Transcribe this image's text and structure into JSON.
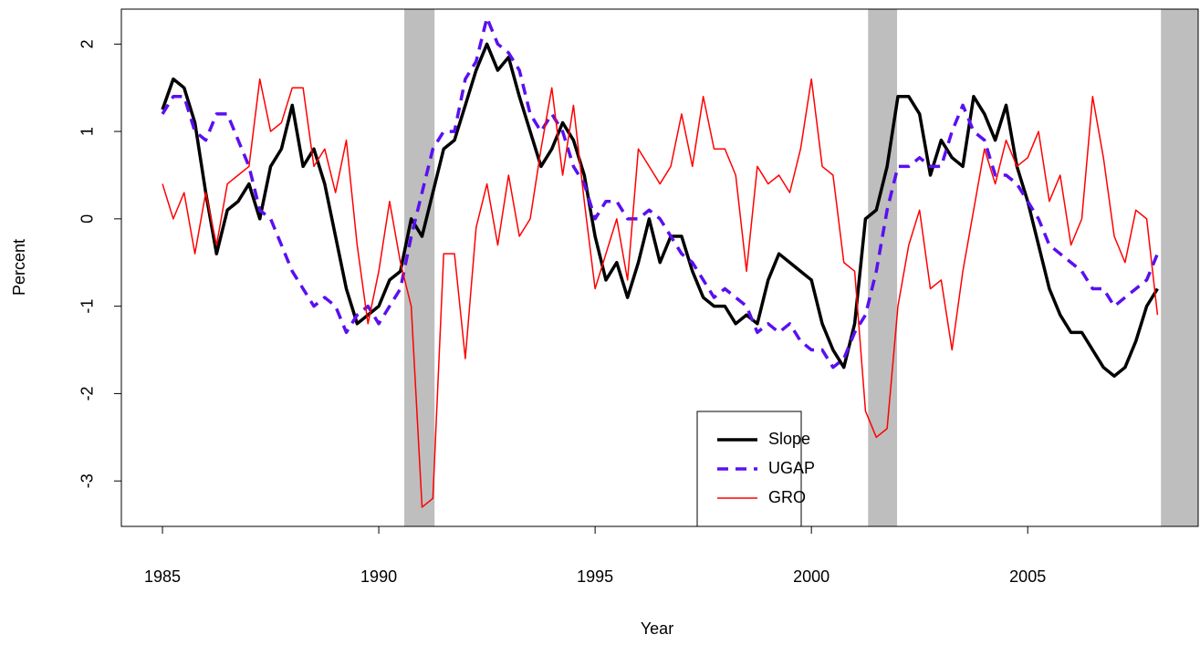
{
  "chart_data": {
    "type": "line",
    "xlabel": "Year",
    "ylabel": "Percent",
    "xlim": [
      1984.05,
      2008.94
    ],
    "ylim": [
      -3.52,
      2.4
    ],
    "xticks": [
      1985,
      1990,
      1995,
      2000,
      2005
    ],
    "yticks": [
      -3,
      -2,
      -1,
      0,
      1,
      2
    ],
    "shaded_regions": [
      [
        1990.59,
        1991.29
      ],
      [
        2001.31,
        2001.98
      ],
      [
        2008.08,
        2008.94
      ]
    ],
    "shade_color": "#bebebe",
    "legend": "bottom center",
    "x": [
      1985,
      1985.25,
      1985.5,
      1985.75,
      1986,
      1986.25,
      1986.5,
      1986.75,
      1987,
      1987.25,
      1987.5,
      1987.75,
      1988,
      1988.25,
      1988.5,
      1988.75,
      1989,
      1989.25,
      1989.5,
      1989.75,
      1990,
      1990.25,
      1990.5,
      1990.75,
      1991,
      1991.25,
      1991.5,
      1991.75,
      1992,
      1992.25,
      1992.5,
      1992.75,
      1993,
      1993.25,
      1993.5,
      1993.75,
      1994,
      1994.25,
      1994.5,
      1994.75,
      1995,
      1995.25,
      1995.5,
      1995.75,
      1996,
      1996.25,
      1996.5,
      1996.75,
      1997,
      1997.25,
      1997.5,
      1997.75,
      1998,
      1998.25,
      1998.5,
      1998.75,
      1999,
      1999.25,
      1999.5,
      1999.75,
      2000,
      2000.25,
      2000.5,
      2000.75,
      2001,
      2001.25,
      2001.5,
      2001.75,
      2002,
      2002.25,
      2002.5,
      2002.75,
      2003,
      2003.25,
      2003.5,
      2003.75,
      2004,
      2004.25,
      2004.5,
      2004.75,
      2005,
      2005.25,
      2005.5,
      2005.75,
      2006,
      2006.25,
      2006.5,
      2006.75,
      2007,
      2007.25,
      2007.5,
      2007.75,
      2008
    ],
    "series": [
      {
        "name": "Slope",
        "color": "#000000",
        "width": 3.5,
        "dash": "solid",
        "values": [
          1.25,
          1.6,
          1.5,
          1.1,
          0.3,
          -0.4,
          0.1,
          0.2,
          0.4,
          0.0,
          0.6,
          0.8,
          1.3,
          0.6,
          0.8,
          0.4,
          -0.2,
          -0.8,
          -1.2,
          -1.1,
          -1.0,
          -0.7,
          -0.6,
          0.0,
          -0.2,
          0.3,
          0.8,
          0.9,
          1.3,
          1.7,
          2.0,
          1.7,
          1.85,
          1.4,
          1.0,
          0.6,
          0.8,
          1.1,
          0.9,
          0.5,
          -0.2,
          -0.7,
          -0.5,
          -0.9,
          -0.5,
          0.0,
          -0.5,
          -0.2,
          -0.2,
          -0.6,
          -0.9,
          -1.0,
          -1.0,
          -1.2,
          -1.1,
          -1.2,
          -0.7,
          -0.4,
          -0.5,
          -0.6,
          -0.7,
          -1.2,
          -1.5,
          -1.7,
          -1.2,
          0.0,
          0.1,
          0.6,
          1.4,
          1.4,
          1.2,
          0.5,
          0.9,
          0.7,
          0.6,
          1.4,
          1.2,
          0.9,
          1.3,
          0.6,
          0.2,
          -0.3,
          -0.8,
          -1.1,
          -1.3,
          -1.3,
          -1.5,
          -1.7,
          -1.8,
          -1.7,
          -1.4,
          -1.0,
          -0.8
        ]
      },
      {
        "name": "UGAP",
        "color": "#5a10f0",
        "width": 3.5,
        "dash": "dashed",
        "values": [
          1.2,
          1.4,
          1.4,
          1.0,
          0.9,
          1.2,
          1.2,
          0.9,
          0.6,
          0.1,
          0.0,
          -0.3,
          -0.6,
          -0.8,
          -1.0,
          -0.9,
          -1.0,
          -1.3,
          -1.1,
          -1.0,
          -1.2,
          -1.0,
          -0.8,
          -0.2,
          0.3,
          0.8,
          1.0,
          1.0,
          1.6,
          1.8,
          2.3,
          2.0,
          1.9,
          1.7,
          1.2,
          1.0,
          1.2,
          1.0,
          0.6,
          0.4,
          0.0,
          0.2,
          0.2,
          0.0,
          0.0,
          0.1,
          0.0,
          -0.2,
          -0.4,
          -0.5,
          -0.7,
          -0.9,
          -0.8,
          -0.9,
          -1.0,
          -1.3,
          -1.2,
          -1.3,
          -1.2,
          -1.4,
          -1.5,
          -1.5,
          -1.7,
          -1.6,
          -1.3,
          -1.1,
          -0.6,
          0.1,
          0.6,
          0.6,
          0.7,
          0.6,
          0.6,
          1.0,
          1.3,
          1.0,
          0.9,
          0.5,
          0.5,
          0.4,
          0.2,
          0.0,
          -0.3,
          -0.4,
          -0.5,
          -0.6,
          -0.8,
          -0.8,
          -1.0,
          -0.9,
          -0.8,
          -0.7,
          -0.4
        ]
      },
      {
        "name": "GRO",
        "color": "#ff0000",
        "width": 1.5,
        "dash": "solid",
        "values": [
          0.4,
          0.0,
          0.3,
          -0.4,
          0.3,
          -0.3,
          0.4,
          0.5,
          0.6,
          1.6,
          1.0,
          1.1,
          1.5,
          1.5,
          0.6,
          0.8,
          0.3,
          0.9,
          -0.3,
          -1.2,
          -0.6,
          0.2,
          -0.5,
          -1.0,
          -3.3,
          -3.2,
          -0.4,
          -0.4,
          -1.6,
          -0.1,
          0.4,
          -0.3,
          0.5,
          -0.2,
          0.0,
          0.8,
          1.5,
          0.5,
          1.3,
          0.2,
          -0.8,
          -0.4,
          0.0,
          -0.7,
          0.8,
          0.6,
          0.4,
          0.6,
          1.2,
          0.6,
          1.4,
          0.8,
          0.8,
          0.5,
          -0.6,
          0.6,
          0.4,
          0.5,
          0.3,
          0.8,
          1.6,
          0.6,
          0.5,
          -0.5,
          -0.6,
          -2.2,
          -2.5,
          -2.4,
          -1.0,
          -0.3,
          0.1,
          -0.8,
          -0.7,
          -1.5,
          -0.6,
          0.1,
          0.8,
          0.4,
          0.9,
          0.6,
          0.7,
          1.0,
          0.2,
          0.5,
          -0.3,
          0.0,
          1.4,
          0.7,
          -0.2,
          -0.5,
          0.1,
          0.0,
          -1.1
        ]
      }
    ]
  }
}
